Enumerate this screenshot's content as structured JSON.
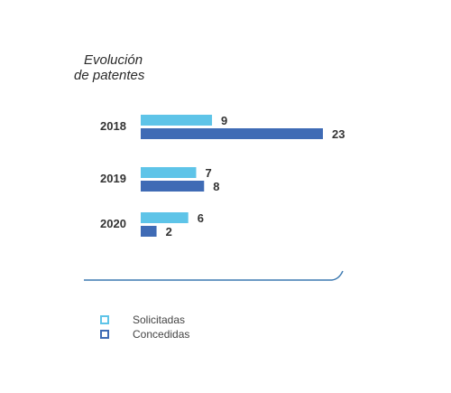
{
  "chart_data": {
    "type": "bar",
    "orientation": "horizontal",
    "title": [
      "Evolución",
      "de patentes"
    ],
    "categories": [
      "2018",
      "2019",
      "2020"
    ],
    "series": [
      {
        "name": "Solicitadas",
        "values": [
          9,
          7,
          6
        ],
        "color": "#5ec4e8"
      },
      {
        "name": "Concedidas",
        "values": [
          23,
          8,
          2
        ],
        "color": "#3f6bb5"
      }
    ],
    "xlim": [
      0,
      23
    ],
    "grid": false,
    "legend": "bottom-left",
    "baseline_color": "#3b78b0"
  }
}
